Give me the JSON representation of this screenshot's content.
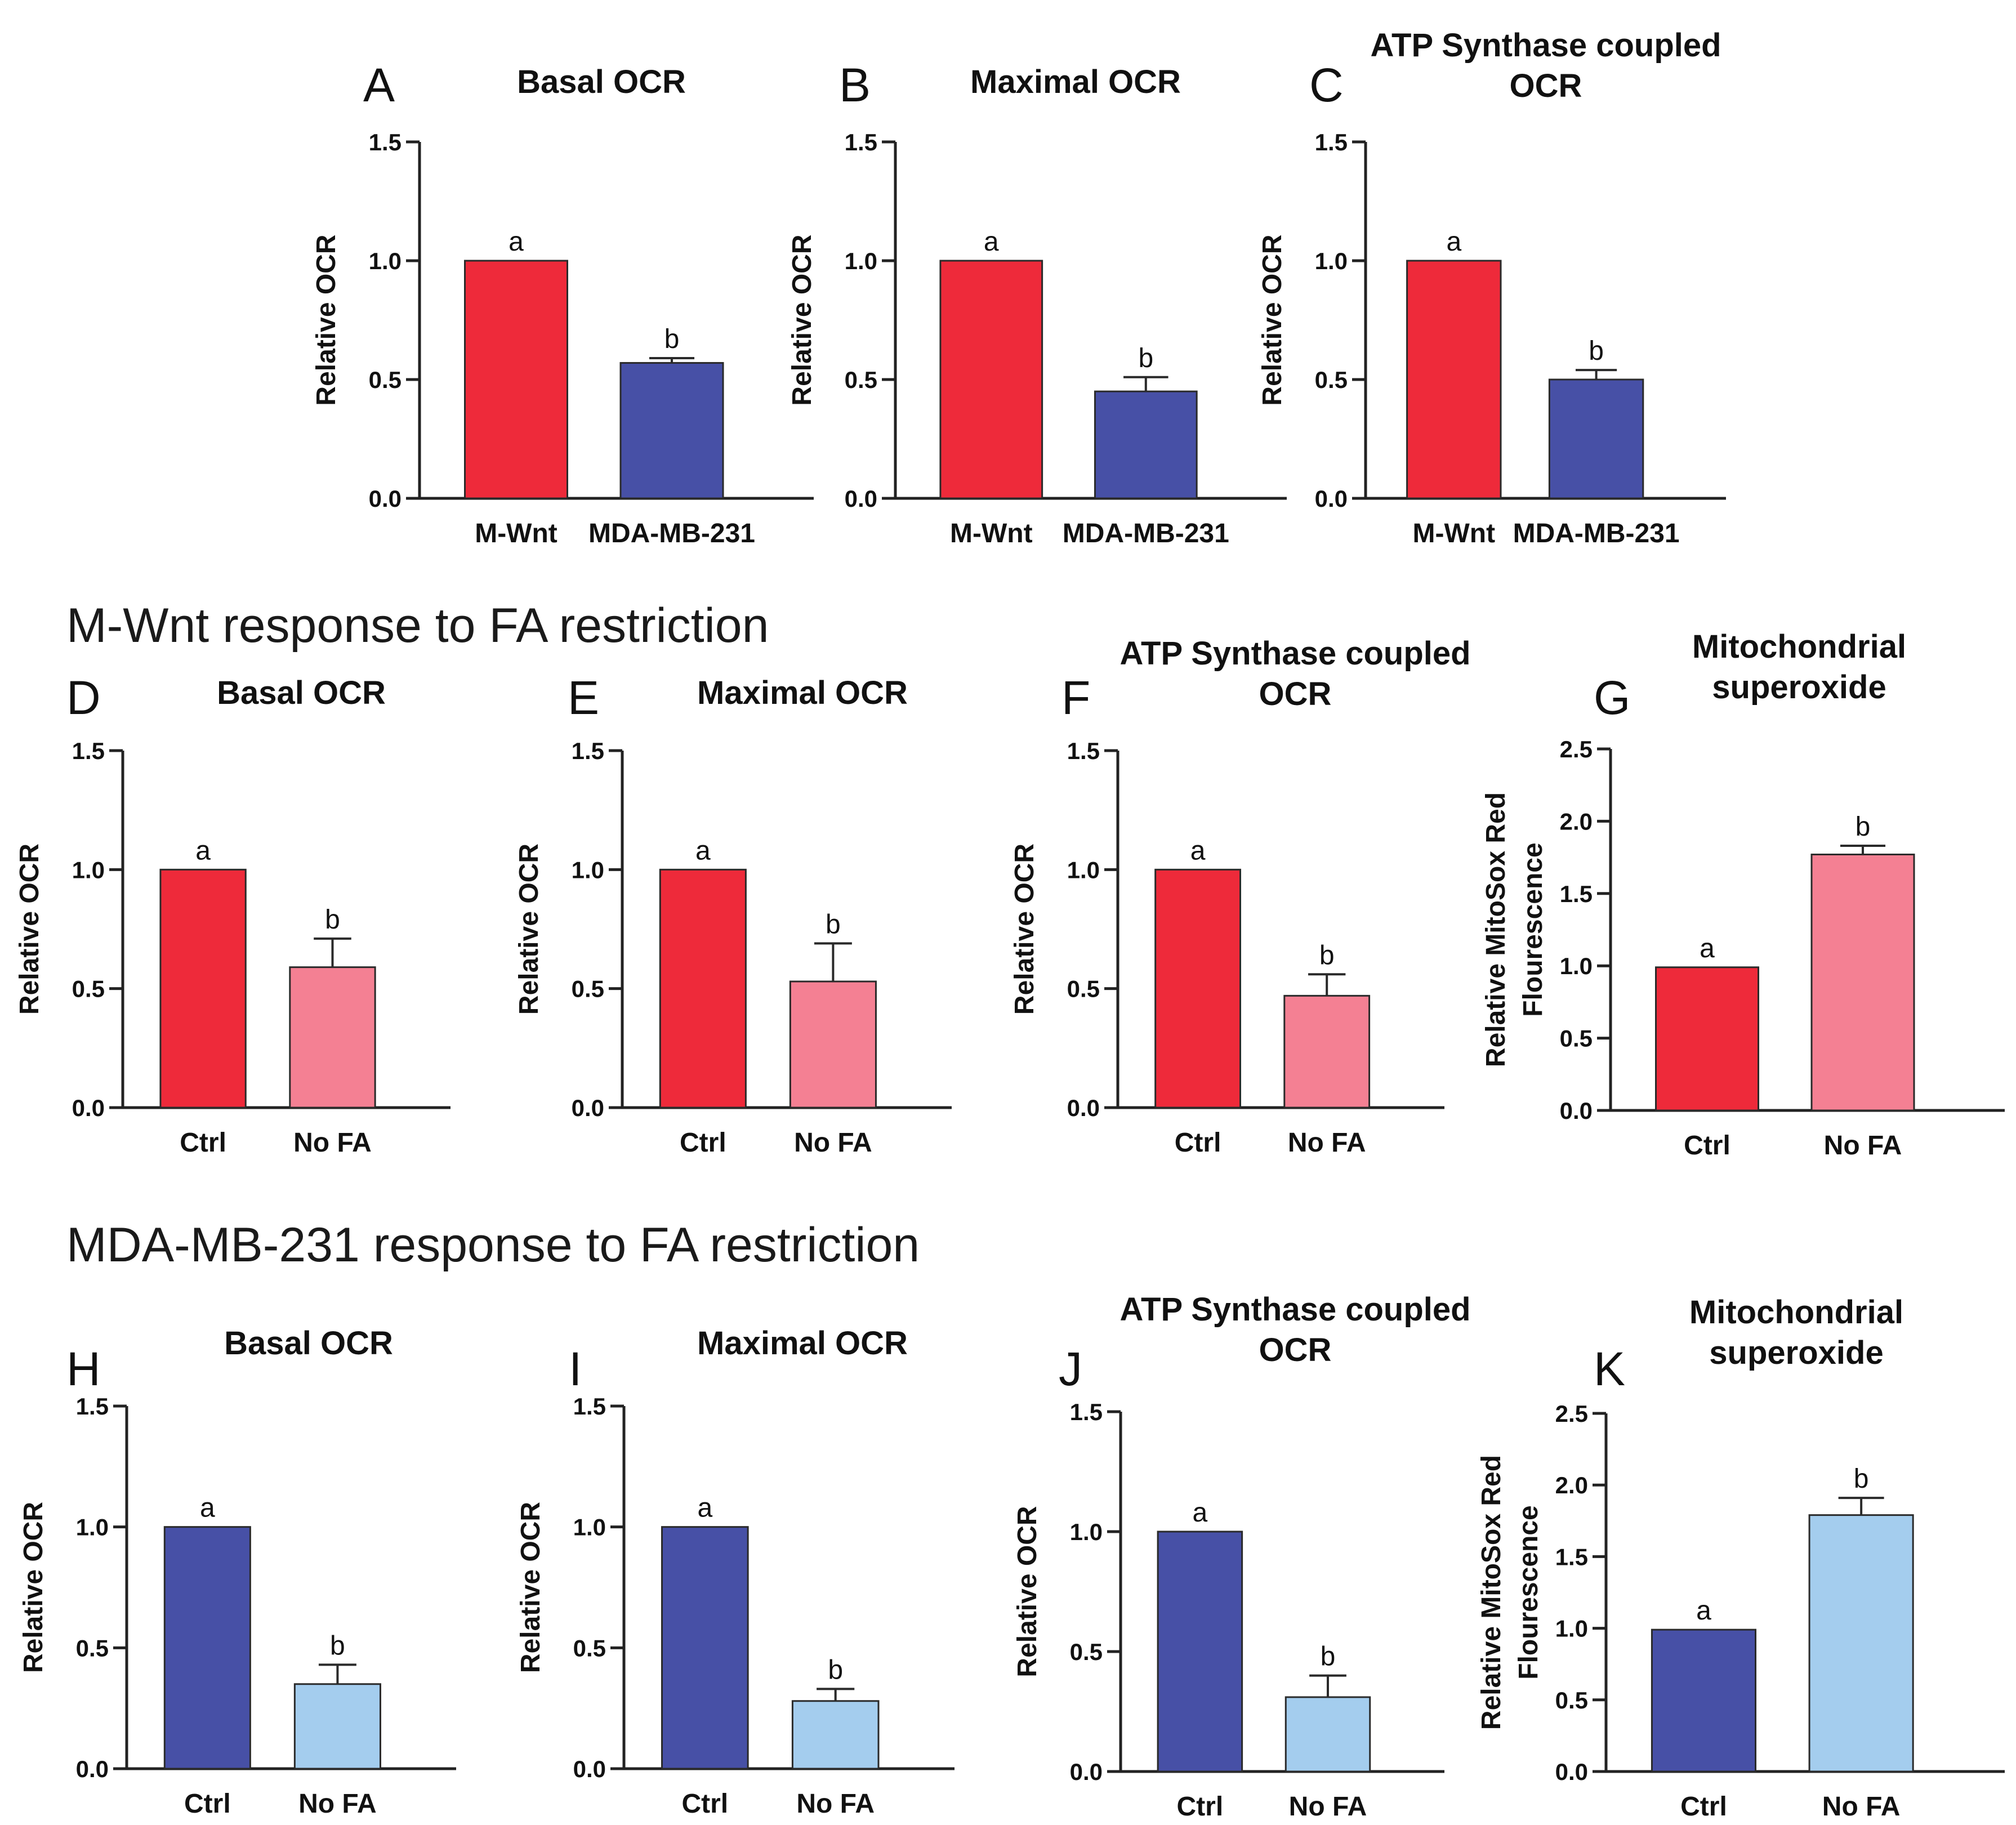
{
  "figure": {
    "row_titles": [
      "M-Wnt response to FA restriction",
      "MDA-MB-231 response to FA restriction"
    ],
    "colors": {
      "red": "#ee2a3a",
      "pink": "#f48093",
      "navy": "#4750a6",
      "lightblue": "#a4cdee",
      "axis": "#222222",
      "text": "#111111"
    }
  },
  "chart_data": [
    {
      "panel": "A",
      "type": "bar",
      "title": [
        "Basal OCR"
      ],
      "ylabel": [
        "Relative OCR"
      ],
      "categories": [
        "M-Wnt",
        "MDA-MB-231"
      ],
      "values": [
        1.0,
        0.57
      ],
      "errors": [
        0,
        0.02
      ],
      "letters": [
        "a",
        "b"
      ],
      "colors": [
        "#ee2a3a",
        "#4750a6"
      ],
      "ylim": [
        0,
        1.5
      ],
      "yticks": [
        "0.0",
        "0.5",
        "1.0",
        "1.5"
      ]
    },
    {
      "panel": "B",
      "type": "bar",
      "title": [
        "Maximal OCR"
      ],
      "ylabel": [
        "Relative OCR"
      ],
      "categories": [
        "M-Wnt",
        "MDA-MB-231"
      ],
      "values": [
        1.0,
        0.45
      ],
      "errors": [
        0,
        0.06
      ],
      "letters": [
        "a",
        "b"
      ],
      "colors": [
        "#ee2a3a",
        "#4750a6"
      ],
      "ylim": [
        0,
        1.5
      ],
      "yticks": [
        "0.0",
        "0.5",
        "1.0",
        "1.5"
      ]
    },
    {
      "panel": "C",
      "type": "bar",
      "title": [
        "ATP Synthase coupled",
        "OCR"
      ],
      "ylabel": [
        "Relative OCR"
      ],
      "categories": [
        "M-Wnt",
        "MDA-MB-231"
      ],
      "values": [
        1.0,
        0.5
      ],
      "errors": [
        0,
        0.04
      ],
      "letters": [
        "a",
        "b"
      ],
      "colors": [
        "#ee2a3a",
        "#4750a6"
      ],
      "ylim": [
        0,
        1.5
      ],
      "yticks": [
        "0.0",
        "0.5",
        "1.0",
        "1.5"
      ]
    },
    {
      "panel": "D",
      "type": "bar",
      "title": [
        "Basal  OCR"
      ],
      "ylabel": [
        "Relative OCR"
      ],
      "categories": [
        "Ctrl",
        "No FA"
      ],
      "values": [
        1.0,
        0.59
      ],
      "errors": [
        0,
        0.12
      ],
      "letters": [
        "a",
        "b"
      ],
      "colors": [
        "#ee2a3a",
        "#f48093"
      ],
      "ylim": [
        0,
        1.5
      ],
      "yticks": [
        "0.0",
        "0.5",
        "1.0",
        "1.5"
      ]
    },
    {
      "panel": "E",
      "type": "bar",
      "title": [
        "Maximal OCR"
      ],
      "ylabel": [
        "Relative OCR"
      ],
      "categories": [
        "Ctrl",
        "No FA"
      ],
      "values": [
        1.0,
        0.53
      ],
      "errors": [
        0,
        0.16
      ],
      "letters": [
        "a",
        "b"
      ],
      "colors": [
        "#ee2a3a",
        "#f48093"
      ],
      "ylim": [
        0,
        1.5
      ],
      "yticks": [
        "0.0",
        "0.5",
        "1.0",
        "1.5"
      ]
    },
    {
      "panel": "F",
      "type": "bar",
      "title": [
        "ATP Synthase coupled",
        "OCR"
      ],
      "ylabel": [
        "Relative OCR"
      ],
      "categories": [
        "Ctrl",
        "No FA"
      ],
      "values": [
        1.0,
        0.47
      ],
      "errors": [
        0,
        0.09
      ],
      "letters": [
        "a",
        "b"
      ],
      "colors": [
        "#ee2a3a",
        "#f48093"
      ],
      "ylim": [
        0,
        1.5
      ],
      "yticks": [
        "0.0",
        "0.5",
        "1.0",
        "1.5"
      ]
    },
    {
      "panel": "G",
      "type": "bar",
      "title": [
        "Mitochondrial",
        "superoxide"
      ],
      "ylabel": [
        "Relative MitoSox Red",
        "Flourescence"
      ],
      "categories": [
        "Ctrl",
        "No FA"
      ],
      "values": [
        0.99,
        1.77
      ],
      "errors": [
        0,
        0.06
      ],
      "letters": [
        "a",
        "b"
      ],
      "colors": [
        "#ee2a3a",
        "#f48093"
      ],
      "ylim": [
        0,
        2.5
      ],
      "yticks": [
        "0.0",
        "0.5",
        "1.0",
        "1.5",
        "2.0",
        "2.5"
      ]
    },
    {
      "panel": "H",
      "type": "bar",
      "title": [
        "Basal OCR"
      ],
      "ylabel": [
        "Relative OCR"
      ],
      "categories": [
        "Ctrl",
        "No FA"
      ],
      "values": [
        1.0,
        0.35
      ],
      "errors": [
        0,
        0.08
      ],
      "letters": [
        "a",
        "b"
      ],
      "colors": [
        "#4750a6",
        "#a4cdee"
      ],
      "ylim": [
        0,
        1.5
      ],
      "yticks": [
        "0.0",
        "0.5",
        "1.0",
        "1.5"
      ]
    },
    {
      "panel": "I",
      "type": "bar",
      "title": [
        "Maximal OCR"
      ],
      "ylabel": [
        "Relative OCR"
      ],
      "categories": [
        "Ctrl",
        "No FA"
      ],
      "values": [
        1.0,
        0.28
      ],
      "errors": [
        0,
        0.05
      ],
      "letters": [
        "a",
        "b"
      ],
      "colors": [
        "#4750a6",
        "#a4cdee"
      ],
      "ylim": [
        0,
        1.5
      ],
      "yticks": [
        "0.0",
        "0.5",
        "1.0",
        "1.5"
      ]
    },
    {
      "panel": "J",
      "type": "bar",
      "title": [
        "ATP Synthase coupled",
        "OCR"
      ],
      "ylabel": [
        "Relative OCR"
      ],
      "categories": [
        "Ctrl",
        "No FA"
      ],
      "values": [
        1.0,
        0.31
      ],
      "errors": [
        0,
        0.09
      ],
      "letters": [
        "a",
        "b"
      ],
      "colors": [
        "#4750a6",
        "#a4cdee"
      ],
      "ylim": [
        0,
        1.5
      ],
      "yticks": [
        "0.0",
        "0.5",
        "1.0",
        "1.5"
      ]
    },
    {
      "panel": "K",
      "type": "bar",
      "title": [
        "Mitochondrial",
        "superoxide"
      ],
      "ylabel": [
        "Relative MitoSox Red",
        "Flourescence"
      ],
      "categories": [
        "Ctrl",
        "No FA"
      ],
      "values": [
        0.99,
        1.79
      ],
      "errors": [
        0,
        0.12
      ],
      "letters": [
        "a",
        "b"
      ],
      "colors": [
        "#4750a6",
        "#a4cdee"
      ],
      "ylim": [
        0,
        2.5
      ],
      "yticks": [
        "0.0",
        "0.5",
        "1.0",
        "1.5",
        "2.0",
        "2.5"
      ]
    }
  ]
}
